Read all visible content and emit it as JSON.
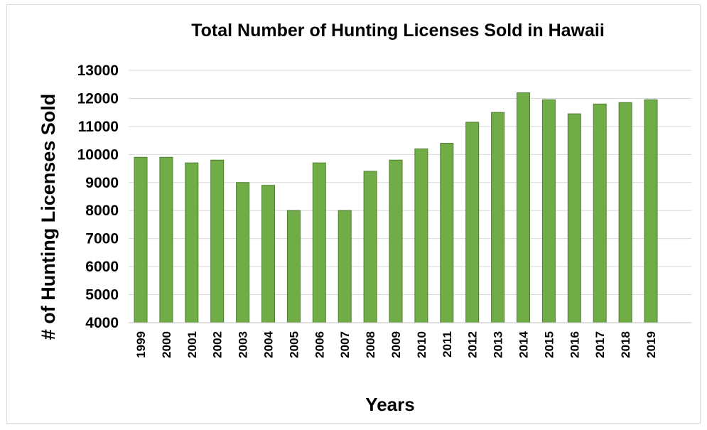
{
  "chart_data": {
    "type": "bar",
    "title": "Total Number of Hunting Licenses Sold in Hawaii",
    "xlabel": "Years",
    "ylabel": "# of Hunting Licenses Sold",
    "categories": [
      "1999",
      "2000",
      "2001",
      "2002",
      "2003",
      "2004",
      "2005",
      "2006",
      "2007",
      "2008",
      "2009",
      "2010",
      "2011",
      "2012",
      "2013",
      "2014",
      "2015",
      "2016",
      "2017",
      "2018",
      "2019"
    ],
    "values": [
      9900,
      9900,
      9700,
      9800,
      9000,
      8900,
      8000,
      9700,
      8000,
      9400,
      9800,
      10200,
      10400,
      11150,
      11500,
      12200,
      11950,
      11450,
      11800,
      11850,
      11950
    ],
    "ylim": [
      4000,
      13000
    ],
    "yticks": [
      4000,
      5000,
      6000,
      7000,
      8000,
      9000,
      10000,
      11000,
      12000,
      13000
    ],
    "grid": true,
    "legend": "none",
    "bar_color": "#70ad47",
    "bar_edge_color": "#507e32"
  }
}
